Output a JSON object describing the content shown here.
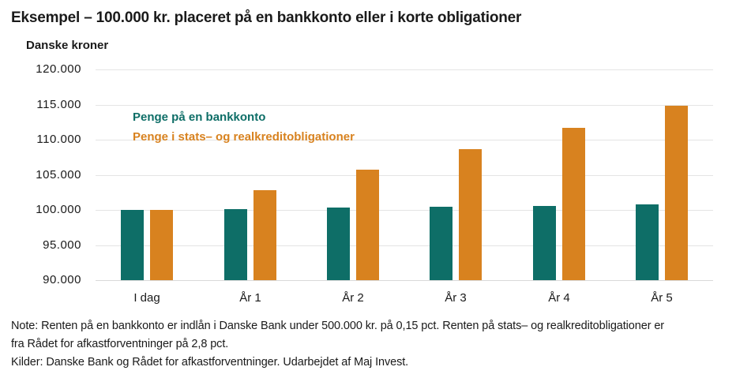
{
  "title": "Eksempel – 100.000 kr. placeret på en bankkonto eller i korte obligationer",
  "chart_data": {
    "type": "bar",
    "title": "Eksempel – 100.000 kr. placeret på en bankkonto eller i korte obligationer",
    "xlabel": "",
    "ylabel": "Danske kroner",
    "categories": [
      "I dag",
      "År 1",
      "År 2",
      "År 3",
      "År 4",
      "År 5"
    ],
    "series": [
      {
        "name": "Penge på en bankkonto",
        "color": "#0E6E67",
        "values": [
          100000,
          100150,
          100300,
          100451,
          100602,
          100753
        ]
      },
      {
        "name": "Penge i stats– og realkreditobligationer",
        "color": "#D8821F",
        "values": [
          100000,
          102800,
          105678,
          108637,
          111679,
          114806
        ]
      }
    ],
    "ylim": [
      90000,
      120000
    ],
    "yticks": [
      {
        "value": 120000,
        "label": "120.000"
      },
      {
        "value": 115000,
        "label": "115.000"
      },
      {
        "value": 110000,
        "label": "110.000"
      },
      {
        "value": 105000,
        "label": "105.000"
      },
      {
        "value": 100000,
        "label": "100.000"
      },
      {
        "value": 95000,
        "label": "95.000"
      },
      {
        "value": 90000,
        "label": "90.000"
      }
    ],
    "grid": true,
    "legend_position": "top-left-inside"
  },
  "notes": {
    "line1": "Note: Renten på en bankkonto er indlån i Danske Bank under 500.000 kr. på 0,15 pct. Renten på stats– og realkreditobligationer er",
    "line2": "fra Rådet for afkastforventninger på 2,8 pct.",
    "line3": "Kilder: Danske Bank og Rådet for afkastforventninger. Udarbejdet af Maj Invest."
  },
  "colors": {
    "teal": "#0E6E67",
    "orange": "#D8821F",
    "gridline": "#E4E4E4",
    "baseline": "#D9D9D9",
    "text": "#1A1A1A"
  }
}
